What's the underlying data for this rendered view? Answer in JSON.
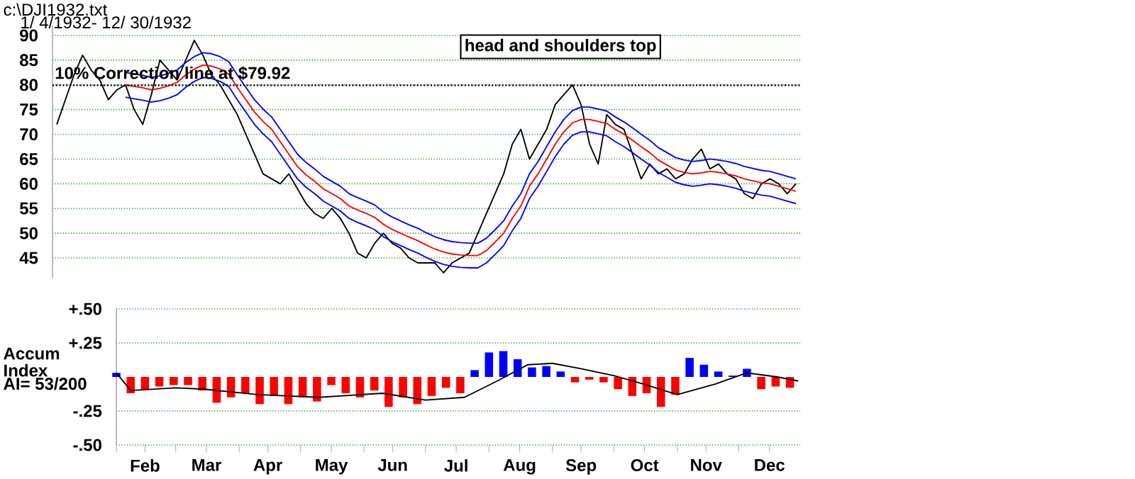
{
  "chart_data": [
    {
      "type": "line",
      "title": "c:\\DJI1932.txt",
      "subtitle": "1/ 4/1932- 12/ 30/1932",
      "annotations": [
        "head and shoulders top"
      ],
      "categories": [
        null,
        null,
        null,
        null,
        null,
        null,
        null,
        null,
        null,
        null,
        null,
        null,
        null,
        null,
        null,
        null,
        null,
        null,
        null,
        null,
        null,
        null,
        null,
        null,
        null,
        null,
        null,
        null,
        null,
        null,
        null,
        null,
        null,
        null,
        null,
        null,
        null,
        null,
        null,
        null,
        null,
        null,
        null,
        null,
        null,
        null,
        null,
        null,
        null,
        null,
        null,
        null,
        null,
        null,
        null,
        null,
        null,
        null,
        null,
        null,
        null,
        null,
        null,
        null,
        null,
        null,
        null,
        null,
        null,
        null,
        null,
        null,
        null,
        null,
        null,
        null,
        null,
        null,
        null,
        null,
        null,
        null,
        null,
        null,
        null,
        null,
        null
      ],
      "ylim": [
        41,
        92
      ],
      "yticks": [
        45,
        50,
        55,
        60,
        65,
        70,
        75,
        80,
        85,
        90
      ],
      "grid": "y",
      "ref_lines": [
        {
          "axis": "y",
          "value": 79.92,
          "label": "10% Correction line at $79.92",
          "color": "#000000",
          "line_style": "dotted"
        }
      ],
      "series": [
        {
          "color": "#000000",
          "values": [
            72,
            77,
            82,
            86,
            83,
            81,
            77,
            79,
            80,
            75,
            72,
            78,
            85,
            83,
            81,
            85,
            89,
            86,
            82,
            80,
            77,
            74,
            70,
            66,
            62,
            61,
            60,
            62,
            59,
            56,
            54,
            53,
            55,
            53,
            50,
            46,
            45,
            48,
            50,
            48,
            47,
            45,
            44,
            44,
            44,
            42,
            44,
            45,
            46,
            50,
            54,
            58,
            62,
            68,
            71,
            65,
            68,
            71,
            76,
            78,
            80,
            76,
            68,
            64,
            74,
            72,
            71,
            66,
            61,
            64,
            62,
            63,
            61,
            62,
            65,
            67,
            63,
            64,
            62,
            61,
            58,
            57,
            60,
            61,
            60,
            58,
            60
          ]
        },
        {
          "color": "#0000ff",
          "values": [
            null,
            null,
            null,
            null,
            null,
            null,
            null,
            null,
            82.5,
            82.2,
            81.9,
            81.5,
            81.8,
            82.3,
            83,
            84.5,
            85.7,
            86.5,
            86.3,
            85.7,
            84.7,
            82,
            79.5,
            77,
            75.1,
            73.5,
            71,
            68.5,
            66,
            64.3,
            63,
            61.5,
            60.5,
            59.5,
            58,
            57.2,
            56.5,
            55.7,
            54.3,
            53.3,
            52.5,
            51.7,
            51,
            50.1,
            49.3,
            48.7,
            48.3,
            48.1,
            48,
            48,
            49,
            50.7,
            52.5,
            55.5,
            58,
            62,
            64.5,
            67.5,
            70.5,
            73,
            74.8,
            75.5,
            75.5,
            75.1,
            74.7,
            73.5,
            72.5,
            71.3,
            70,
            68.8,
            67.3,
            66.3,
            65.3,
            64.8,
            64.5,
            64.7,
            65,
            64.8,
            64.5,
            64.1,
            63.5,
            63.1,
            62.7,
            62.5,
            62,
            61.5,
            61
          ]
        },
        {
          "color": "#ff0000",
          "values": [
            null,
            null,
            null,
            null,
            null,
            null,
            null,
            null,
            80,
            79.7,
            79.4,
            79,
            79.3,
            79.8,
            80.5,
            82,
            83.2,
            84,
            83.8,
            83.2,
            82.2,
            79.5,
            77,
            74.5,
            72.6,
            71,
            68.5,
            66,
            63.5,
            61.8,
            60.5,
            59,
            58,
            57,
            55.5,
            54.7,
            54,
            53.2,
            51.8,
            50.8,
            50,
            49.2,
            48.5,
            47.6,
            46.8,
            46.2,
            45.8,
            45.6,
            45.5,
            45.5,
            46.5,
            48.2,
            50,
            53,
            55.5,
            59.5,
            62,
            65,
            68,
            70.5,
            72.3,
            73,
            73,
            72.6,
            72.2,
            71,
            70,
            68.8,
            67.5,
            66.3,
            64.8,
            63.8,
            62.8,
            62.3,
            62,
            62.2,
            62.5,
            62.3,
            62,
            61.6,
            61,
            60.6,
            60.2,
            60,
            59.5,
            59,
            58.5
          ]
        },
        {
          "color": "#0000ff",
          "values": [
            null,
            null,
            null,
            null,
            null,
            null,
            null,
            null,
            77.5,
            77.2,
            76.9,
            76.5,
            76.8,
            77.3,
            78,
            79.5,
            80.7,
            81.5,
            81.3,
            80.7,
            79.7,
            77,
            74.5,
            72,
            70.1,
            68.5,
            66,
            63.5,
            61,
            59.3,
            58,
            56.5,
            55.5,
            54.5,
            53,
            52.2,
            51.5,
            50.7,
            49.3,
            48.3,
            47.5,
            46.7,
            46,
            45.1,
            44.3,
            43.7,
            43.3,
            43.1,
            43,
            43,
            44,
            45.7,
            47.5,
            50.5,
            53,
            57,
            59.5,
            62.5,
            65.5,
            68,
            69.8,
            70.5,
            70.5,
            70.1,
            69.7,
            68.5,
            67.5,
            66.3,
            65,
            63.8,
            62.3,
            61.3,
            60.3,
            59.8,
            59.5,
            59.7,
            60,
            59.8,
            59.5,
            59.1,
            58.5,
            58.1,
            57.7,
            57.5,
            57,
            56.5,
            56
          ]
        }
      ]
    },
    {
      "type": "bar",
      "ylabel": "Accum Index",
      "annotations": [
        "AI= 53/200"
      ],
      "xlim": [
        "1932-02-01",
        "1932-12-31"
      ],
      "ylim": [
        -0.5,
        0.5
      ],
      "yticks": [
        {
          "value": 0.5,
          "label": "+.50"
        },
        {
          "value": 0.25,
          "label": "+.25"
        },
        {
          "value": -0.25,
          "label": "-.25"
        },
        {
          "value": -0.5,
          "label": "-.50"
        }
      ],
      "xticks": [
        {
          "value": "1932-02-01",
          "label": null
        },
        {
          "value": "1932-02-15",
          "label": "Feb"
        },
        {
          "value": "1932-03-01",
          "label": null
        },
        {
          "value": "1932-03-16",
          "label": "Mar"
        },
        {
          "value": "1932-04-01",
          "label": null
        },
        {
          "value": "1932-04-15",
          "label": "Apr"
        },
        {
          "value": "1932-05-01",
          "label": null
        },
        {
          "value": "1932-05-16",
          "label": "May"
        },
        {
          "value": "1932-06-01",
          "label": null
        },
        {
          "value": "1932-06-15",
          "label": "Jun"
        },
        {
          "value": "1932-07-01",
          "label": null
        },
        {
          "value": "1932-07-16",
          "label": "Jul"
        },
        {
          "value": "1932-08-01",
          "label": null
        },
        {
          "value": "1932-08-16",
          "label": "Aug"
        },
        {
          "value": "1932-09-01",
          "label": null
        },
        {
          "value": "1932-09-15",
          "label": "Sep"
        },
        {
          "value": "1932-10-01",
          "label": null
        },
        {
          "value": "1932-10-16",
          "label": "Oct"
        },
        {
          "value": "1932-11-01",
          "label": null
        },
        {
          "value": "1932-11-15",
          "label": "Nov"
        },
        {
          "value": "1932-12-01",
          "label": null
        },
        {
          "value": "1932-12-16",
          "label": "Dec"
        }
      ],
      "grid": "y",
      "series": [
        {
          "type": "bar",
          "x": [
            "1932-02-01",
            "1932-02-08",
            "1932-02-15",
            "1932-02-22",
            "1932-02-29",
            "1932-03-07",
            "1932-03-14",
            "1932-03-21",
            "1932-03-28",
            "1932-04-04",
            "1932-04-11",
            "1932-04-18",
            "1932-04-25",
            "1932-05-02",
            "1932-05-09",
            "1932-05-16",
            "1932-05-23",
            "1932-05-30",
            "1932-06-06",
            "1932-06-13",
            "1932-06-20",
            "1932-06-27",
            "1932-07-04",
            "1932-07-11",
            "1932-07-18",
            "1932-07-25",
            "1932-08-01",
            "1932-08-08",
            "1932-08-15",
            "1932-08-22",
            "1932-08-29",
            "1932-09-05",
            "1932-09-12",
            "1932-09-19",
            "1932-09-26",
            "1932-10-03",
            "1932-10-10",
            "1932-10-17",
            "1932-10-24",
            "1932-10-31",
            "1932-11-07",
            "1932-11-14",
            "1932-11-21",
            "1932-11-28",
            "1932-12-05",
            "1932-12-12",
            "1932-12-19",
            "1932-12-26"
          ],
          "values": [
            0.03,
            -0.12,
            -0.09,
            -0.07,
            -0.06,
            -0.06,
            -0.1,
            -0.19,
            -0.15,
            -0.12,
            -0.2,
            -0.14,
            -0.2,
            -0.15,
            -0.18,
            -0.06,
            -0.12,
            -0.15,
            -0.1,
            -0.22,
            -0.15,
            -0.2,
            -0.14,
            -0.08,
            -0.12,
            0.05,
            0.18,
            0.19,
            0.13,
            0.07,
            0.08,
            0.04,
            -0.04,
            -0.02,
            -0.04,
            -0.09,
            -0.14,
            -0.12,
            -0.22,
            -0.13,
            0.14,
            0.09,
            0.04,
            0.01,
            0.06,
            -0.09,
            -0.07,
            -0.08
          ],
          "colors": [
            "#0000ff",
            "#ff0000",
            "#ff0000",
            "#ff0000",
            "#ff0000",
            "#ff0000",
            "#ff0000",
            "#ff0000",
            "#ff0000",
            "#ff0000",
            "#ff0000",
            "#ff0000",
            "#ff0000",
            "#ff0000",
            "#ff0000",
            "#ff0000",
            "#ff0000",
            "#ff0000",
            "#ff0000",
            "#ff0000",
            "#ff0000",
            "#ff0000",
            "#ff0000",
            "#ff0000",
            "#ff0000",
            "#0000ff",
            "#0000ff",
            "#0000ff",
            "#0000ff",
            "#0000ff",
            "#0000ff",
            "#0000ff",
            "#ff0000",
            "#ff0000",
            "#ff0000",
            "#ff0000",
            "#ff0000",
            "#ff0000",
            "#ff0000",
            "#ff0000",
            "#0000ff",
            "#0000ff",
            "#0000ff",
            "#0000ff",
            "#0000ff",
            "#ff0000",
            "#ff0000",
            "#ff0000"
          ]
        },
        {
          "type": "line",
          "color": "#000000",
          "x": [
            "1932-02-01",
            "1932-02-08",
            "1932-03-01",
            "1932-03-15",
            "1932-04-10",
            "1932-05-10",
            "1932-06-10",
            "1932-07-01",
            "1932-07-20",
            "1932-08-05",
            "1932-08-20",
            "1932-09-01",
            "1932-09-15",
            "1932-10-01",
            "1932-10-15",
            "1932-11-01",
            "1932-11-20",
            "1932-12-05",
            "1932-12-20",
            "1932-12-30"
          ],
          "values": [
            0.03,
            -0.1,
            -0.08,
            -0.09,
            -0.13,
            -0.15,
            -0.12,
            -0.17,
            -0.15,
            -0.03,
            0.09,
            0.1,
            0.06,
            0.01,
            -0.05,
            -0.13,
            -0.05,
            0.03,
            0.0,
            -0.03
          ]
        }
      ]
    }
  ]
}
